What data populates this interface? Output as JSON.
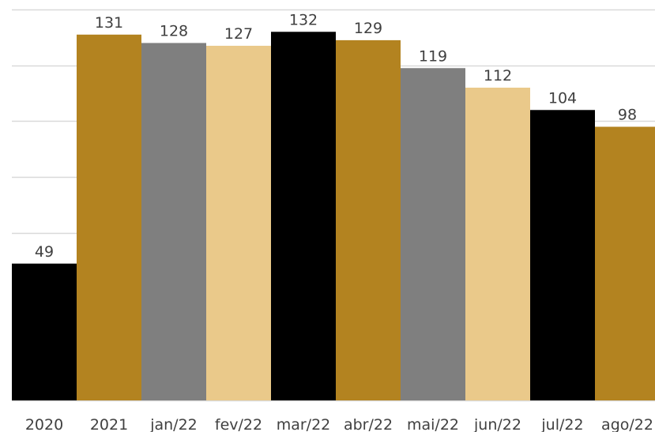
{
  "chart_data": {
    "type": "bar",
    "title": "",
    "xlabel": "",
    "ylabel": "",
    "ylim": [
      0,
      140
    ],
    "grid": true,
    "categories": [
      "2020",
      "2021",
      "jan/22",
      "fev/22",
      "mar/22",
      "abr/22",
      "mai/22",
      "jun/22",
      "jul/22",
      "ago/22"
    ],
    "values": [
      49,
      131,
      128,
      127,
      132,
      129,
      119,
      112,
      104,
      98
    ],
    "data_labels": [
      "49",
      "131",
      "128",
      "127",
      "132",
      "129",
      "119",
      "112",
      "104",
      "98"
    ],
    "bar_colors": [
      "#000000",
      "#b38320",
      "#7f7f7f",
      "#eac98a",
      "#000000",
      "#b38320",
      "#7f7f7f",
      "#eac98a",
      "#000000",
      "#b38320"
    ],
    "gridline_color": "#d9d9d9",
    "label_color": "#404040"
  }
}
